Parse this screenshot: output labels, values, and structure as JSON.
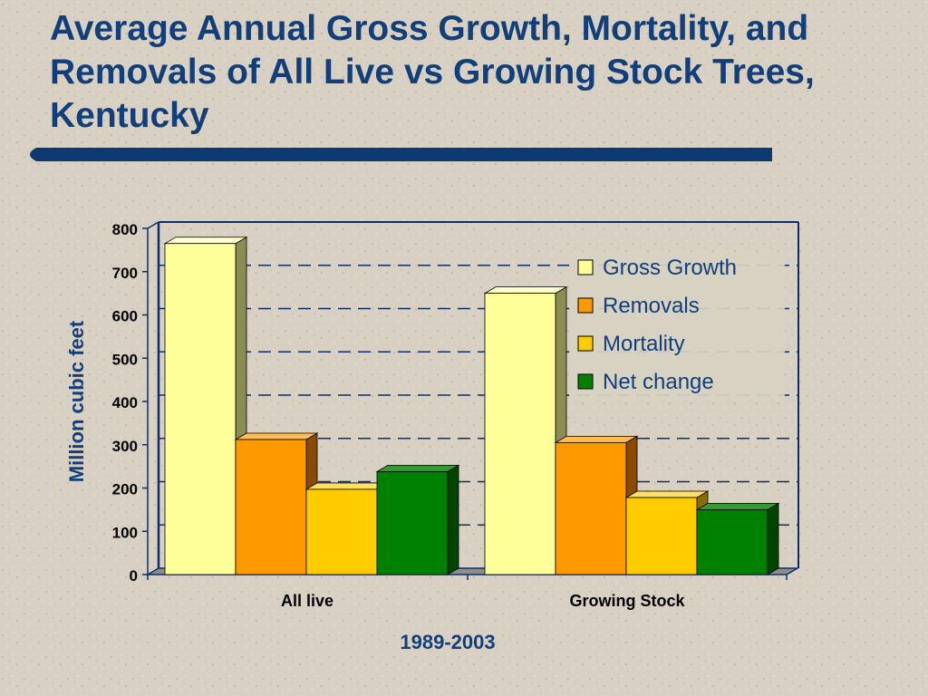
{
  "slide": {
    "title": "Average Annual Gross Growth, Mortality, and Removals of All Live vs Growing Stock Trees, Kentucky"
  },
  "colors": {
    "title": "#123f7a",
    "accent_bar": "#0b3970",
    "axes": "#0b2f6b",
    "gross_growth": "#ffff99",
    "removals": "#ff9900",
    "mortality": "#ffcc00",
    "net_change": "#008000"
  },
  "chart_data": {
    "type": "bar",
    "categories": [
      "All live",
      "Growing Stock"
    ],
    "series": [
      {
        "name": "Gross Growth",
        "values": [
          765,
          650
        ]
      },
      {
        "name": "Removals",
        "values": [
          312,
          305
        ]
      },
      {
        "name": "Mortality",
        "values": [
          197,
          178
        ]
      },
      {
        "name": "Net change",
        "values": [
          238,
          150
        ]
      }
    ],
    "yticks": [
      "0",
      "100",
      "200",
      "300",
      "400",
      "500",
      "600",
      "700",
      "800"
    ],
    "ylim": [
      0,
      800
    ],
    "ylabel": "Million cubic feet",
    "xlabel": "1989-2003",
    "grid": "dashed horizontal",
    "legend_position": "top-right",
    "style": "3d"
  }
}
